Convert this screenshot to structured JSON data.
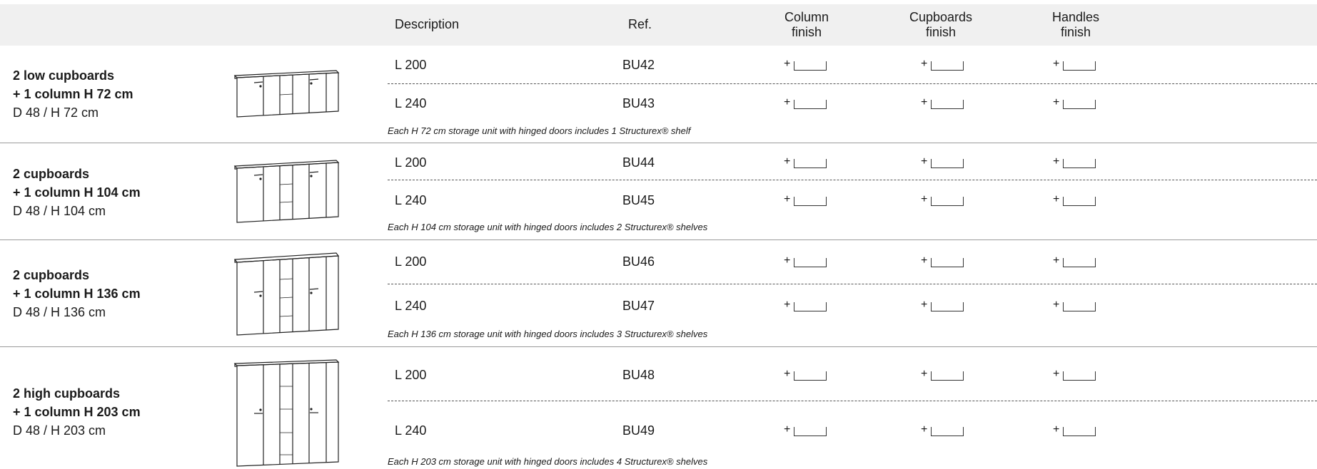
{
  "header": {
    "description": "Description",
    "ref": "Ref.",
    "column_finish": [
      "Column",
      "finish"
    ],
    "cupboards_finish": [
      "Cupboards",
      "finish"
    ],
    "handles_finish": [
      "Handles",
      "finish"
    ]
  },
  "finish_symbol": "+",
  "sections": [
    {
      "title_line1": "2 low cupboards",
      "title_line2": "+ 1 column H 72 cm",
      "dimensions": "D 48 / H 72 cm",
      "rows": [
        {
          "description": "L 200",
          "ref": "BU42"
        },
        {
          "description": "L 240",
          "ref": "BU43"
        }
      ],
      "note": "Each H 72 cm storage unit with hinged doors includes 1 Structurex® shelf"
    },
    {
      "title_line1": "2 cupboards",
      "title_line2": "+ 1 column H 104 cm",
      "dimensions": "D 48 / H 104 cm",
      "rows": [
        {
          "description": "L 200",
          "ref": "BU44"
        },
        {
          "description": "L 240",
          "ref": "BU45"
        }
      ],
      "note": "Each H 104 cm storage unit with hinged doors includes 2 Structurex® shelves"
    },
    {
      "title_line1": "2 cupboards",
      "title_line2": "+ 1 column H 136 cm",
      "dimensions": "D 48 / H 136 cm",
      "rows": [
        {
          "description": "L 200",
          "ref": "BU46"
        },
        {
          "description": "L 240",
          "ref": "BU47"
        }
      ],
      "note": "Each H 136 cm storage unit with hinged doors includes 3 Structurex® shelves"
    },
    {
      "title_line1": "2 high cupboards",
      "title_line2": "+ 1 column H 203 cm",
      "dimensions": "D 48 / H 203 cm",
      "rows": [
        {
          "description": "L 200",
          "ref": "BU48"
        },
        {
          "description": "L 240",
          "ref": "BU49"
        }
      ],
      "note": "Each H 203 cm storage unit with hinged doors includes 4 Structurex® shelves"
    }
  ]
}
